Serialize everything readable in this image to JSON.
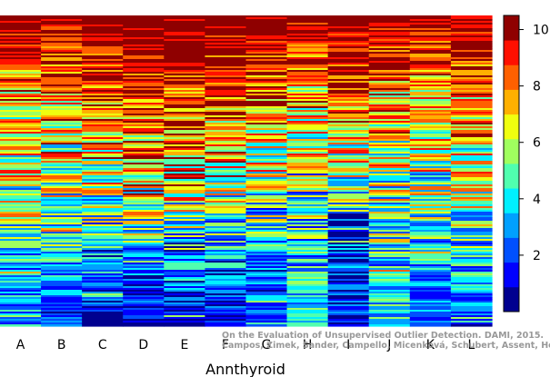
{
  "chart_data": {
    "type": "heatmap",
    "title": "",
    "xlabel": "Annthyroid",
    "ylabel": "",
    "categories": [
      "A",
      "B",
      "C",
      "D",
      "E",
      "F",
      "G",
      "H",
      "I",
      "J",
      "K",
      "L"
    ],
    "colorbar": {
      "range": [
        0,
        10.5
      ],
      "ticks": [
        "2",
        "4",
        "6",
        "8",
        "10"
      ],
      "levels": 11,
      "colors": [
        "#00008f",
        "#0000ff",
        "#0050ff",
        "#00a0ff",
        "#00f0ff",
        "#50ffaf",
        "#a0ff5f",
        "#f0ff0f",
        "#ffb000",
        "#ff6000",
        "#ff1000",
        "#8f0000"
      ]
    },
    "column_profiles": {
      "A": [
        10.4,
        7.5,
        6.2,
        4.2,
        1.8
      ],
      "B": [
        10.2,
        7.8,
        6.0,
        3.8,
        1.6
      ],
      "C": [
        10.5,
        8.8,
        6.5,
        3.2,
        0.8
      ],
      "D": [
        10.5,
        9.5,
        7.6,
        3.4,
        0.8
      ],
      "E": [
        10.5,
        9.2,
        7.4,
        3.3,
        1.0
      ],
      "F": [
        10.5,
        9.0,
        6.8,
        3.3,
        1.0
      ],
      "G": [
        10.4,
        8.5,
        6.0,
        3.5,
        1.3
      ],
      "H": [
        10.0,
        7.2,
        5.0,
        3.5,
        4.0
      ],
      "I": [
        10.5,
        9.0,
        5.5,
        2.0,
        1.2
      ],
      "J": [
        10.2,
        7.5,
        5.5,
        4.2,
        3.5
      ],
      "K": [
        10.0,
        7.5,
        5.8,
        4.0,
        2.0
      ],
      "L": [
        10.5,
        8.0,
        6.0,
        4.0,
        2.0
      ]
    }
  },
  "watermark": {
    "line1": "On the Evaluation of Unsupervised Outlier Detection. DAMI, 2015.",
    "line2": "Campos, Zimek, Sander, Campello, Micenková, Schubert, Assent, Houle"
  }
}
